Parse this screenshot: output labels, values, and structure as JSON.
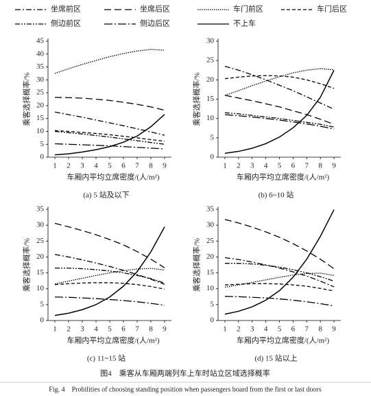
{
  "legend": [
    {
      "name": "坐席前区",
      "dash": "8 3 2 3"
    },
    {
      "name": "坐席后区",
      "dash": "10 5"
    },
    {
      "name": "车门前区",
      "dash": "1.5 1.5"
    },
    {
      "name": "车门后区",
      "dash": "5 3"
    },
    {
      "name": "侧边前区",
      "dash": "7 2 2 2 2 2"
    },
    {
      "name": "侧边后区",
      "dash": "12 3 2 3"
    },
    {
      "name": "不上车",
      "dash": ""
    }
  ],
  "figure_caption": {
    "cn": "图4　乘客从车厢两端列车上车时站立区域选择概率",
    "en": "Fig. 4　Probilities of choosing standing position when passengers board from the first or last doors"
  },
  "chart_data": [
    {
      "type": "line",
      "caption": "(a) 5 站及以下",
      "xlabel": "车厢内平均立席密度/(人/m²)",
      "ylabel": "乘客选择概率/%",
      "color": "#000",
      "x": [
        1,
        2,
        3,
        4,
        5,
        6,
        7,
        8,
        9
      ],
      "xlim": [
        0.5,
        9.5
      ],
      "xticks": [
        1,
        2,
        3,
        4,
        5,
        6,
        7,
        8,
        9
      ],
      "ylim": [
        0,
        45
      ],
      "yticks": [
        0,
        5,
        10,
        15,
        20,
        25,
        30,
        35,
        40,
        45
      ],
      "series": [
        {
          "values": [
            17.5,
            16.5,
            15.5,
            14.4,
            13.3,
            12.2,
            11,
            9.8,
            8.5
          ]
        },
        {
          "values": [
            23.2,
            23.1,
            22.9,
            22.5,
            22,
            21.3,
            20.5,
            19.5,
            18.2
          ]
        },
        {
          "values": [
            32.5,
            34.3,
            36,
            37.5,
            39,
            40.2,
            41.2,
            41.8,
            41.5
          ]
        },
        {
          "values": [
            10.3,
            10,
            9.6,
            9.2,
            8.7,
            8.1,
            7.5,
            6.8,
            6.2
          ]
        },
        {
          "values": [
            10,
            9.5,
            9,
            8.4,
            7.8,
            7.1,
            6.4,
            5.7,
            5
          ]
        },
        {
          "values": [
            5.2,
            5,
            4.8,
            4.6,
            4.4,
            4.1,
            3.8,
            3.5,
            3.2
          ]
        },
        {
          "values": [
            0.9,
            1.3,
            2,
            2.9,
            4.1,
            5.8,
            8.2,
            11.8,
            16.6
          ]
        }
      ]
    },
    {
      "type": "line",
      "caption": "(b) 6~10 站",
      "xlabel": "车厢内平均立席密度/(人/m²)",
      "ylabel": "乘客选择概率/%",
      "color": "#000",
      "x": [
        1,
        2,
        3,
        4,
        5,
        6,
        7,
        8,
        9
      ],
      "xlim": [
        0.5,
        9.5
      ],
      "xticks": [
        1,
        2,
        3,
        4,
        5,
        6,
        7,
        8,
        9
      ],
      "ylim": [
        0,
        30
      ],
      "yticks": [
        0,
        5,
        10,
        15,
        20,
        25,
        30
      ],
      "series": [
        {
          "values": [
            23.5,
            22.5,
            21.3,
            20,
            18.6,
            17.2,
            15.6,
            14,
            12.4
          ]
        },
        {
          "values": [
            16,
            15.3,
            14.6,
            13.8,
            13,
            12,
            11,
            9.8,
            8.5
          ]
        },
        {
          "values": [
            16,
            17.2,
            18.5,
            19.7,
            20.8,
            21.8,
            22.5,
            22.9,
            22.6
          ]
        },
        {
          "values": [
            20.3,
            20.7,
            21,
            21.1,
            21,
            20.7,
            20,
            19,
            17.8
          ]
        },
        {
          "values": [
            11.5,
            11.2,
            10.8,
            10.4,
            10,
            9.5,
            9,
            8.5,
            7.8
          ]
        },
        {
          "values": [
            11,
            10.7,
            10.4,
            10,
            9.6,
            9.1,
            8.6,
            8,
            7.3
          ]
        },
        {
          "values": [
            1,
            1.5,
            2.3,
            3.5,
            5.2,
            7.6,
            10.8,
            15.5,
            22.5
          ]
        }
      ]
    },
    {
      "type": "line",
      "caption": "(c) 11~15 站",
      "xlabel": "车厢内平均立席密度/(人/m²)",
      "ylabel": "乘客选择概率/%",
      "color": "#000",
      "x": [
        1,
        2,
        3,
        4,
        5,
        6,
        7,
        8,
        9
      ],
      "xlim": [
        0.5,
        9.5
      ],
      "xticks": [
        1,
        2,
        3,
        4,
        5,
        6,
        7,
        8,
        9
      ],
      "ylim": [
        0,
        35
      ],
      "yticks": [
        0,
        5,
        10,
        15,
        20,
        25,
        30,
        35
      ],
      "series": [
        {
          "values": [
            20.8,
            20,
            19.1,
            18.1,
            17,
            15.8,
            14.5,
            13,
            11.4
          ]
        },
        {
          "values": [
            30.6,
            29.5,
            28.3,
            27,
            25.5,
            23.8,
            21.7,
            19.3,
            16.6
          ]
        },
        {
          "values": [
            11.5,
            12.4,
            13.3,
            14.2,
            15,
            15.7,
            16.2,
            16.4,
            15.9
          ]
        },
        {
          "values": [
            11.3,
            11.6,
            11.8,
            11.9,
            11.9,
            11.7,
            11.3,
            10.7,
            9.9
          ]
        },
        {
          "values": [
            16.5,
            16.5,
            16.3,
            16,
            15.6,
            15,
            14.2,
            13.2,
            11.8
          ]
        },
        {
          "values": [
            7.4,
            7.3,
            7.1,
            6.9,
            6.6,
            6.3,
            5.9,
            5.4,
            4.8
          ]
        },
        {
          "values": [
            1.6,
            2.3,
            3.4,
            5,
            7.4,
            10.8,
            15.4,
            21.6,
            29.5
          ]
        }
      ]
    },
    {
      "type": "line",
      "caption": "(d) 15 站以上",
      "xlabel": "车厢内平均立席密度/(人/m²)",
      "ylabel": "乘客选择概率/%",
      "color": "#000",
      "x": [
        1,
        2,
        3,
        4,
        5,
        6,
        7,
        8,
        9
      ],
      "xlim": [
        0.5,
        9.5
      ],
      "xticks": [
        1,
        2,
        3,
        4,
        5,
        6,
        7,
        8,
        9
      ],
      "ylim": [
        0,
        35
      ],
      "yticks": [
        0,
        5,
        10,
        15,
        20,
        25,
        30,
        35
      ],
      "series": [
        {
          "values": [
            19.8,
            19.2,
            18.4,
            17.5,
            16.5,
            15.3,
            14,
            12.4,
            10.6
          ]
        },
        {
          "values": [
            31.8,
            30.7,
            29.4,
            27.9,
            26.2,
            24.2,
            21.9,
            19.3,
            16.3
          ]
        },
        {
          "values": [
            10.5,
            11.2,
            12,
            12.8,
            13.6,
            14.3,
            14.8,
            14.9,
            14.2
          ]
        },
        {
          "values": [
            11.2,
            11.4,
            11.6,
            11.6,
            11.5,
            11.2,
            10.8,
            10.1,
            9.3
          ]
        },
        {
          "values": [
            18,
            18,
            17.8,
            17.4,
            16.8,
            16,
            15,
            13.8,
            12.4
          ]
        },
        {
          "values": [
            7.6,
            7.5,
            7.3,
            7.1,
            6.8,
            6.4,
            5.9,
            5.3,
            4.6
          ]
        },
        {
          "values": [
            2,
            2.9,
            4.3,
            6.4,
            9.4,
            13.6,
            19.3,
            26.5,
            34.9
          ]
        }
      ]
    }
  ]
}
